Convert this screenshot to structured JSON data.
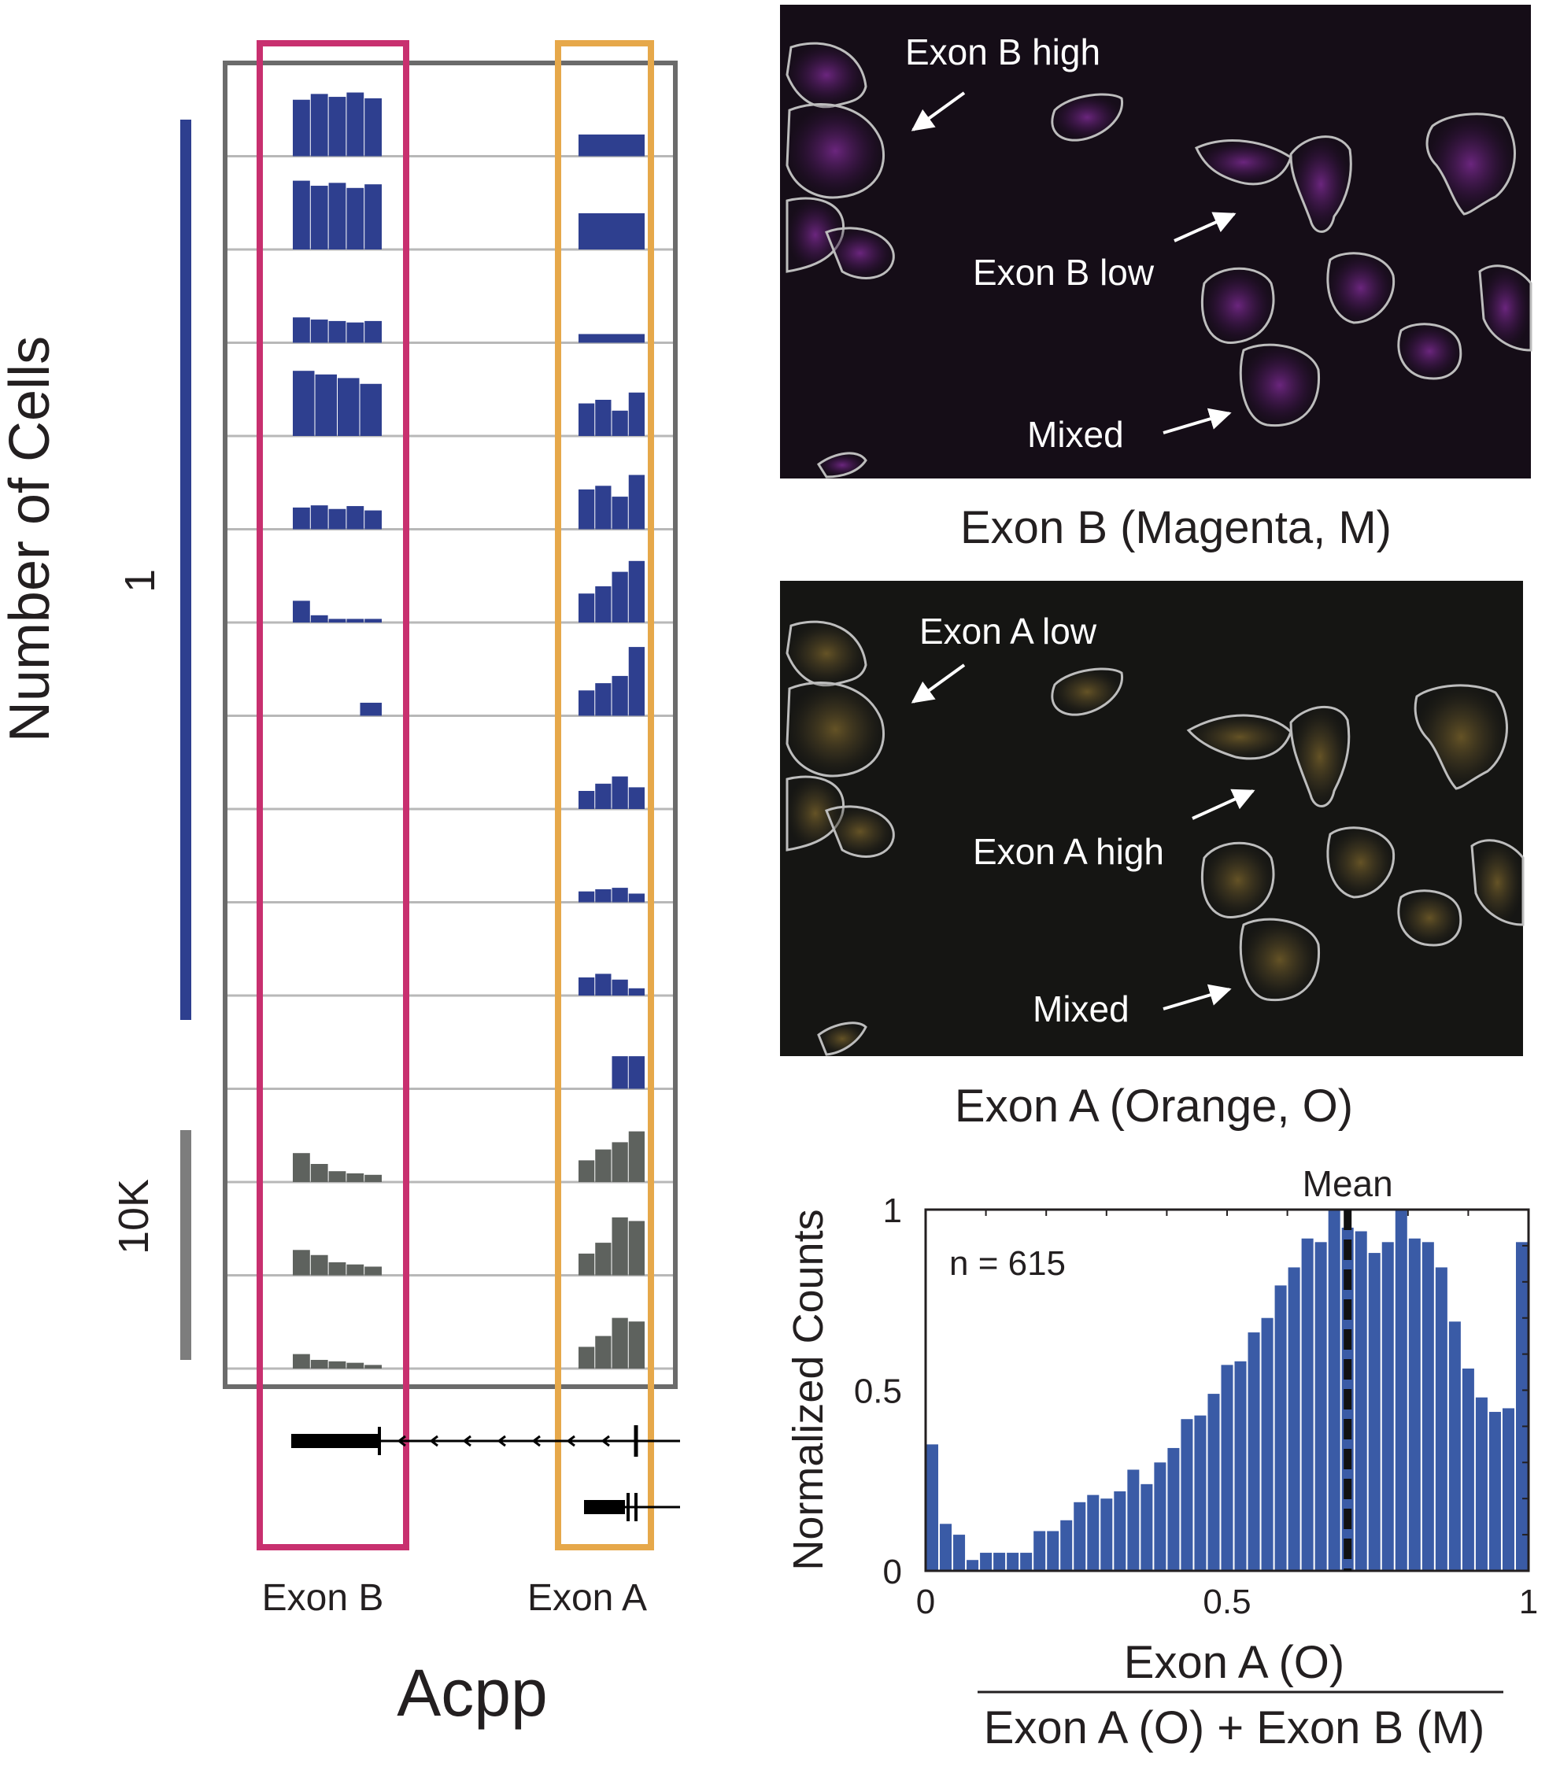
{
  "left_panel": {
    "y_axis_label": "Number of Cells",
    "scale_single": "1",
    "scale_bulk": "10K",
    "gene_name": "Acpp",
    "exon_b_label": "Exon B",
    "exon_a_label": "Exon A",
    "colors": {
      "single_cell": "#2e3f8f",
      "bulk": "#5e625e",
      "exon_b_box": "#c8306f",
      "exon_a_box": "#e6a84a",
      "frame": "#6b6b6b"
    }
  },
  "track_data": {
    "single_cell_tracks": [
      {
        "exon_b": [
          0.78,
          0.86,
          0.82,
          0.88,
          0.8
        ],
        "exon_a": [
          0.3
        ]
      },
      {
        "exon_b": [
          0.95,
          0.88,
          0.92,
          0.85,
          0.9
        ],
        "exon_a": [
          0.5
        ]
      },
      {
        "exon_b": [
          0.35,
          0.32,
          0.3,
          0.28,
          0.3
        ],
        "exon_a": [
          0.12
        ]
      },
      {
        "exon_b": [
          0.9,
          0.85,
          0.8,
          0.72
        ],
        "exon_a": [
          0.45,
          0.5,
          0.35,
          0.6
        ]
      },
      {
        "exon_b": [
          0.3,
          0.33,
          0.28,
          0.32,
          0.26
        ],
        "exon_a": [
          0.55,
          0.6,
          0.45,
          0.75
        ]
      },
      {
        "exon_b": [
          0.3,
          0.1,
          0.05,
          0.05,
          0.05
        ],
        "exon_a": [
          0.4,
          0.5,
          0.7,
          0.85
        ]
      },
      {
        "exon_b": [
          0.0,
          0.0,
          0.0,
          0.18
        ],
        "exon_a": [
          0.35,
          0.45,
          0.55,
          0.95
        ]
      },
      {
        "exon_b": [
          0.0
        ],
        "exon_a": [
          0.25,
          0.35,
          0.45,
          0.3
        ]
      },
      {
        "exon_b": [
          0.0
        ],
        "exon_a": [
          0.15,
          0.18,
          0.2,
          0.12
        ]
      },
      {
        "exon_b": [
          0.0
        ],
        "exon_a": [
          0.25,
          0.3,
          0.22,
          0.1
        ]
      },
      {
        "exon_b": [
          0.0
        ],
        "exon_a": [
          0.0,
          0.0,
          0.45,
          0.45
        ]
      }
    ],
    "bulk_tracks": [
      {
        "exon_b": [
          0.4,
          0.25,
          0.15,
          0.12,
          0.1
        ],
        "exon_a": [
          0.3,
          0.45,
          0.55,
          0.7
        ]
      },
      {
        "exon_b": [
          0.35,
          0.28,
          0.18,
          0.15,
          0.12
        ],
        "exon_a": [
          0.3,
          0.45,
          0.8,
          0.75
        ]
      },
      {
        "exon_b": [
          0.2,
          0.12,
          0.1,
          0.08,
          0.05
        ],
        "exon_a": [
          0.3,
          0.45,
          0.7,
          0.65
        ]
      }
    ]
  },
  "image_panels": [
    {
      "caption": "Exon B (Magenta, M)",
      "color": "#b23fd6",
      "annotations": [
        "Exon B high",
        "Exon B low",
        "Mixed"
      ]
    },
    {
      "caption": "Exon A (Orange, O)",
      "color": "#e3b02a",
      "annotations": [
        "Exon A low",
        "Exon A high",
        "Mixed"
      ]
    }
  ],
  "chart_data": {
    "type": "bar",
    "ylabel": "Normalized Counts",
    "xlabel_numerator": "Exon A (O)",
    "xlabel_denominator": "Exon A (O) + Exon B (M)",
    "annotation": "n = 615",
    "mean_label": "Mean",
    "mean_value": 0.7,
    "xlim": [
      0,
      1
    ],
    "ylim": [
      0,
      1
    ],
    "x_ticks": [
      "0",
      "0.5",
      "1"
    ],
    "y_ticks": [
      "0",
      "0.5",
      "1"
    ],
    "bar_color": "#3a5ba6",
    "values": [
      0.35,
      0.13,
      0.1,
      0.03,
      0.05,
      0.05,
      0.05,
      0.05,
      0.11,
      0.11,
      0.14,
      0.19,
      0.21,
      0.2,
      0.22,
      0.28,
      0.24,
      0.3,
      0.34,
      0.42,
      0.43,
      0.49,
      0.57,
      0.58,
      0.66,
      0.7,
      0.79,
      0.84,
      0.92,
      0.91,
      1.0,
      0.95,
      0.94,
      0.88,
      0.91,
      1.0,
      0.92,
      0.91,
      0.84,
      0.69,
      0.56,
      0.48,
      0.44,
      0.45,
      0.91
    ]
  }
}
